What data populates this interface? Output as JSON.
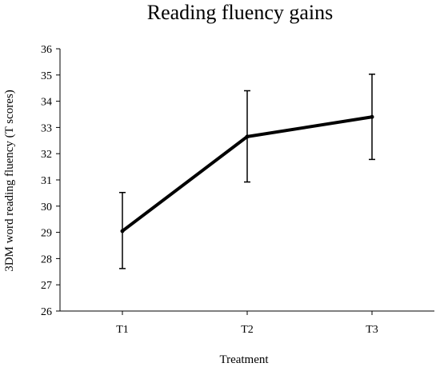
{
  "chart_data": {
    "type": "line",
    "title": "Reading fluency gains",
    "xlabel": "Treatment",
    "ylabel": "3DM word reading fluency (T scores)",
    "categories": [
      "T1",
      "T2",
      "T3"
    ],
    "series": [
      {
        "values": [
          29.05,
          32.65,
          33.4
        ],
        "error_low": [
          27.62,
          30.92,
          31.78
        ],
        "error_high": [
          30.52,
          34.4,
          35.03
        ]
      }
    ],
    "ylim": [
      26,
      36
    ],
    "yticks": [
      26,
      27,
      28,
      29,
      30,
      31,
      32,
      33,
      34,
      35,
      36
    ],
    "grid": false,
    "legend": "none",
    "line_color": "#000000"
  }
}
